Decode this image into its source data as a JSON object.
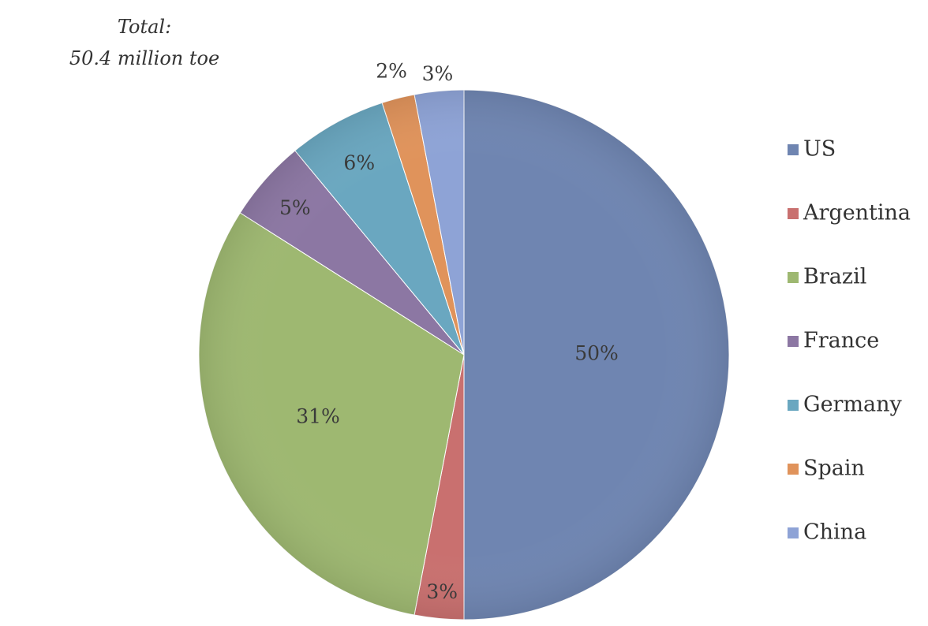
{
  "chart_data": {
    "type": "pie",
    "annotation": {
      "line1": "Total:",
      "line2": "50.4 million toe"
    },
    "categories": [
      "US",
      "Argentina",
      "Brazil",
      "France",
      "Germany",
      "Spain",
      "China"
    ],
    "values": [
      50,
      3,
      31,
      5,
      6,
      2,
      3
    ],
    "labels": [
      "50%",
      "3%",
      "31%",
      "5%",
      "6%",
      "2%",
      "3%"
    ],
    "colors": [
      "#6f85b1",
      "#c9706f",
      "#9eb871",
      "#8c77a3",
      "#6aa7c0",
      "#e0935b",
      "#8ea3d6"
    ],
    "start_angle_deg": 0,
    "direction": "clockwise",
    "legend_position": "right"
  }
}
